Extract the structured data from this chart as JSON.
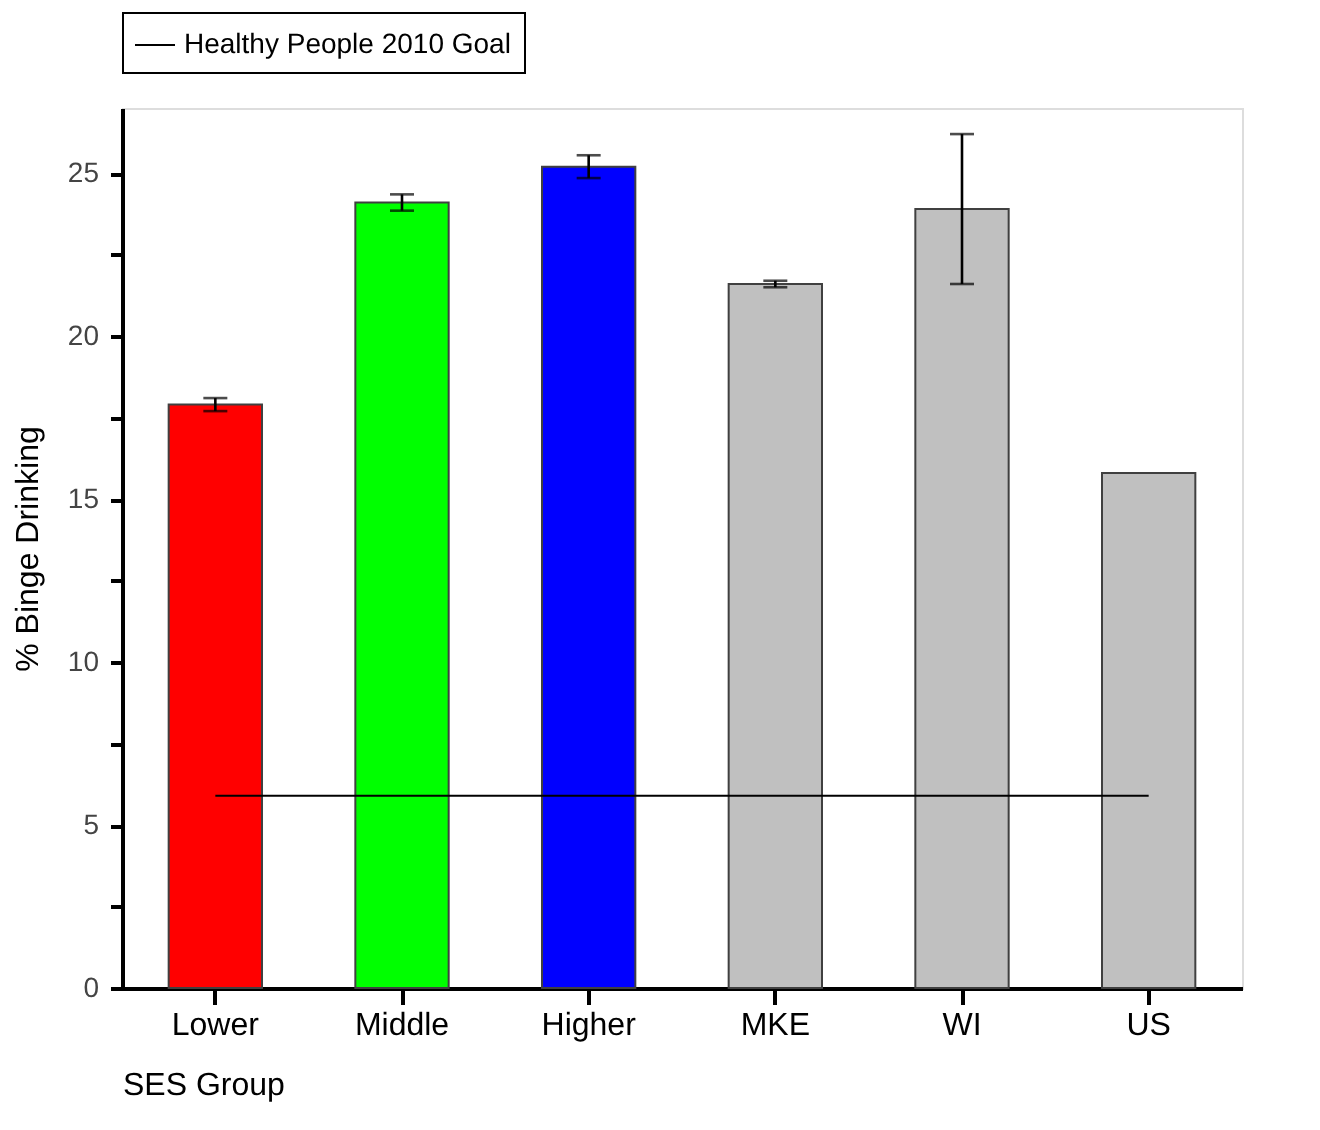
{
  "chart_data": {
    "type": "bar",
    "xlabel": "SES Group",
    "ylabel": "% Binge Drinking",
    "categories": [
      "Lower",
      "Middle",
      "Higher",
      "MKE",
      "WI",
      "US"
    ],
    "values": [
      17.9,
      24.1,
      25.2,
      21.6,
      23.9,
      15.8
    ],
    "colors": [
      "#ff0000",
      "#00ff00",
      "#0000ff",
      "#c0c0c0",
      "#c0c0c0",
      "#c0c0c0"
    ],
    "errors": [
      0.2,
      0.25,
      0.35,
      0.1,
      2.3,
      null
    ],
    "ylim": [
      0,
      27
    ],
    "yticks": [
      0,
      {
        "value": 2.5,
        "label": null
      },
      5,
      {
        "value": 7.5,
        "label": null
      },
      10,
      {
        "value": 12.5,
        "label": null
      },
      15,
      {
        "value": 17.5,
        "label": null
      },
      20,
      {
        "value": 22.5,
        "label": null
      },
      25
    ],
    "ref_lines": [
      {
        "axis": "y",
        "value": 5.9,
        "label": "Healthy People 2010 Goal",
        "color": "#000000",
        "line_style": "solid"
      }
    ],
    "legend": "top",
    "grid": false
  }
}
